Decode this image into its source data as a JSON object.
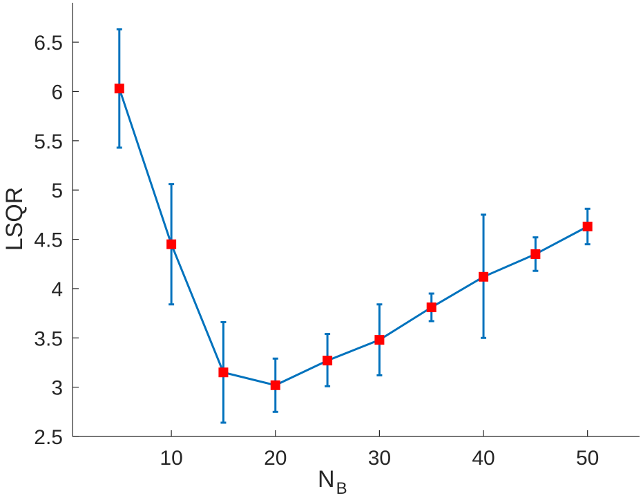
{
  "chart_data": {
    "type": "line",
    "title": "",
    "xlabel": "N",
    "xlabel_subscript": "B",
    "ylabel": "LSQR",
    "xlim": [
      0.5,
      55
    ],
    "ylim": [
      2.5,
      6.9
    ],
    "xticks": [
      10,
      20,
      30,
      40,
      50
    ],
    "yticks": [
      2.5,
      3,
      3.5,
      4,
      4.5,
      5,
      5.5,
      6,
      6.5
    ],
    "xtick_labels": [
      "10",
      "20",
      "30",
      "40",
      "50"
    ],
    "ytick_labels": [
      "2.5",
      "3",
      "3.5",
      "4",
      "4.5",
      "5",
      "5.5",
      "6",
      "6.5"
    ],
    "grid": false,
    "legend": "none",
    "series": [
      {
        "x": [
          5,
          10,
          15,
          20,
          25,
          30,
          35,
          40,
          45,
          50
        ],
        "y": [
          6.03,
          4.45,
          3.15,
          3.02,
          3.27,
          3.48,
          3.81,
          4.12,
          4.35,
          4.63
        ],
        "err_low": [
          5.43,
          3.84,
          2.64,
          2.75,
          3.01,
          3.12,
          3.67,
          3.5,
          4.18,
          4.45
        ],
        "err_high": [
          6.63,
          5.06,
          3.66,
          3.29,
          3.54,
          3.84,
          3.95,
          4.75,
          4.52,
          4.81
        ],
        "line_color": "#0072BD",
        "marker_color": "#FF0000",
        "marker": "square"
      }
    ]
  }
}
